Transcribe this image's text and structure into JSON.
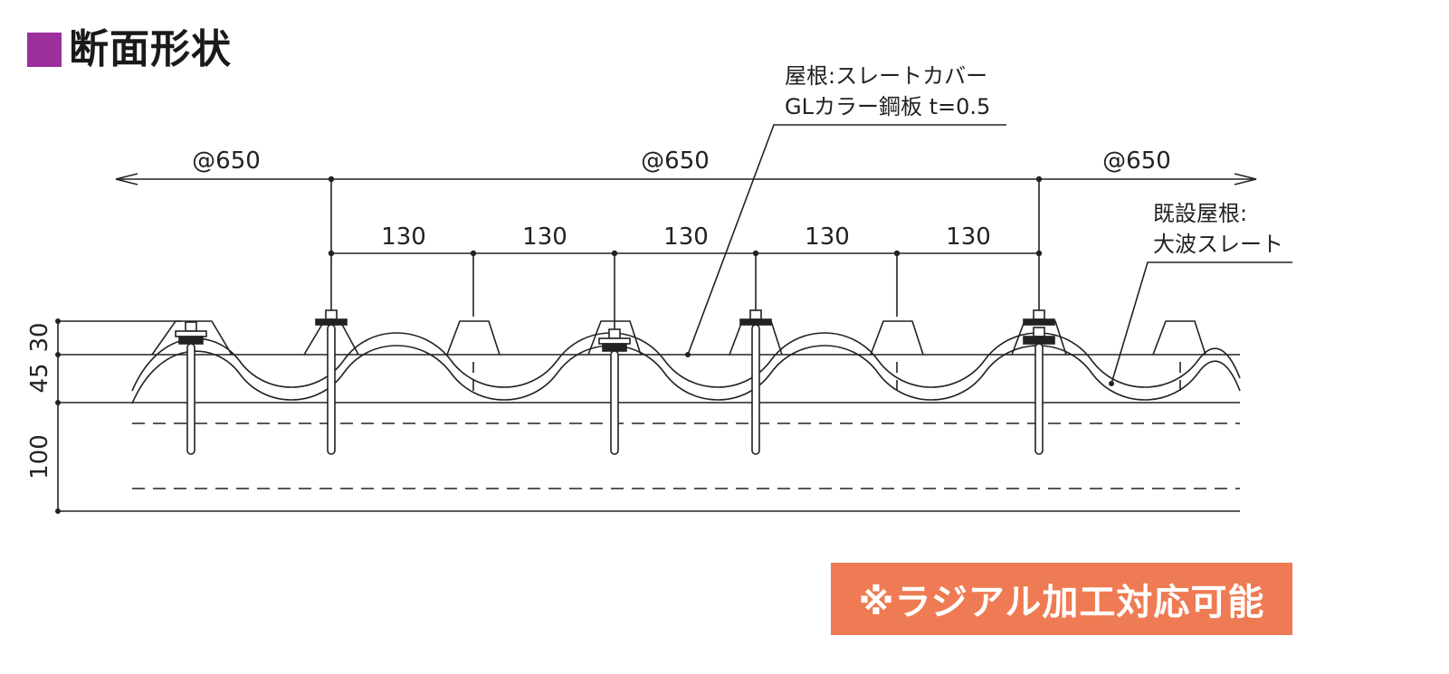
{
  "title": "断面形状",
  "colors": {
    "title_marker": "#9b2f9b",
    "badge_background": "#ee7b53",
    "line": "#222222"
  },
  "dimensions": {
    "pitch_labels": [
      "@650",
      "@650",
      "@650"
    ],
    "spacing_labels": [
      "130",
      "130",
      "130",
      "130",
      "130"
    ],
    "vertical_labels": [
      "30",
      "45",
      "100"
    ]
  },
  "labels": {
    "roof_cover_line1": "屋根:スレートカバー",
    "roof_cover_line2": "GLカラー鋼板 t=0.5",
    "existing_roof_line1": "既設屋根:",
    "existing_roof_line2": "大波スレート"
  },
  "badge": "※ラジアル加工対応可能"
}
